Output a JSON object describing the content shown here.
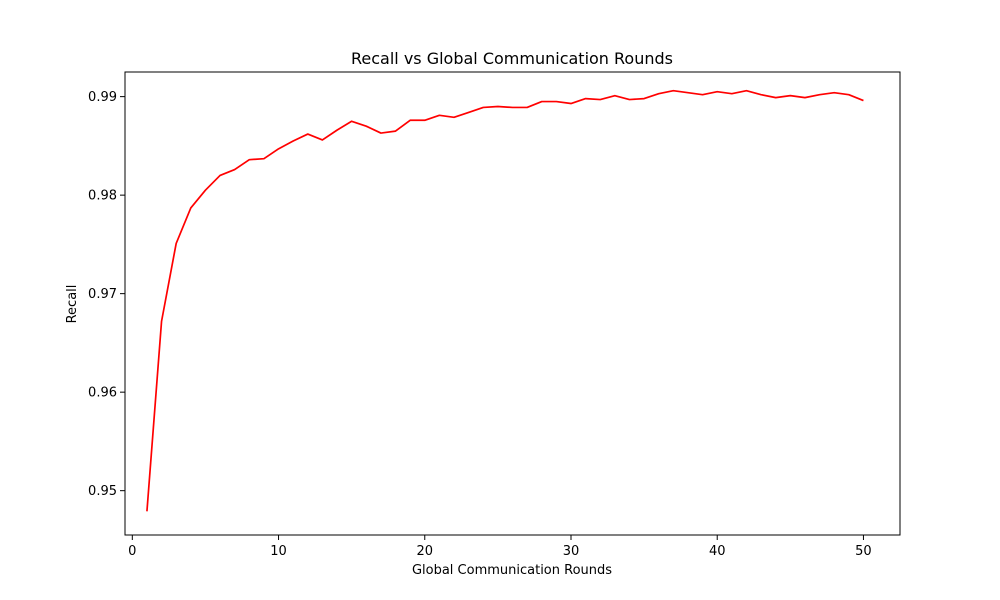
{
  "chart_data": {
    "type": "line",
    "title": "Recall vs Global Communication Rounds",
    "xlabel": "Global Communication Rounds",
    "ylabel": "Recall",
    "xlim": [
      -0.5,
      52.5
    ],
    "ylim": [
      0.9455,
      0.9925
    ],
    "xticks": [
      0,
      10,
      20,
      30,
      40,
      50
    ],
    "yticks": [
      0.95,
      0.96,
      0.97,
      0.98,
      0.99
    ],
    "xtick_labels": [
      "0",
      "10",
      "20",
      "30",
      "40",
      "50"
    ],
    "ytick_labels": [
      "0.95",
      "0.96",
      "0.97",
      "0.98",
      "0.99"
    ],
    "grid": false,
    "series": [
      {
        "color": "#ff0000",
        "x": [
          1,
          2,
          3,
          4,
          5,
          6,
          7,
          8,
          9,
          10,
          11,
          12,
          13,
          14,
          15,
          16,
          17,
          18,
          19,
          20,
          21,
          22,
          23,
          24,
          25,
          26,
          27,
          28,
          29,
          30,
          31,
          32,
          33,
          34,
          35,
          36,
          37,
          38,
          39,
          40,
          41,
          42,
          43,
          44,
          45,
          46,
          47,
          48,
          49,
          50
        ],
        "y": [
          0.9479,
          0.9672,
          0.9751,
          0.9787,
          0.9805,
          0.982,
          0.9826,
          0.9836,
          0.9837,
          0.9847,
          0.9855,
          0.9862,
          0.9856,
          0.9866,
          0.9875,
          0.987,
          0.9863,
          0.9865,
          0.9876,
          0.9876,
          0.9881,
          0.9879,
          0.9884,
          0.9889,
          0.989,
          0.9889,
          0.9889,
          0.9895,
          0.9895,
          0.9893,
          0.9898,
          0.9897,
          0.9901,
          0.9897,
          0.9898,
          0.9903,
          0.9906,
          0.9904,
          0.9902,
          0.9905,
          0.9903,
          0.9906,
          0.9902,
          0.9899,
          0.9901,
          0.9899,
          0.9902,
          0.9904,
          0.9902,
          0.9896
        ]
      }
    ]
  }
}
